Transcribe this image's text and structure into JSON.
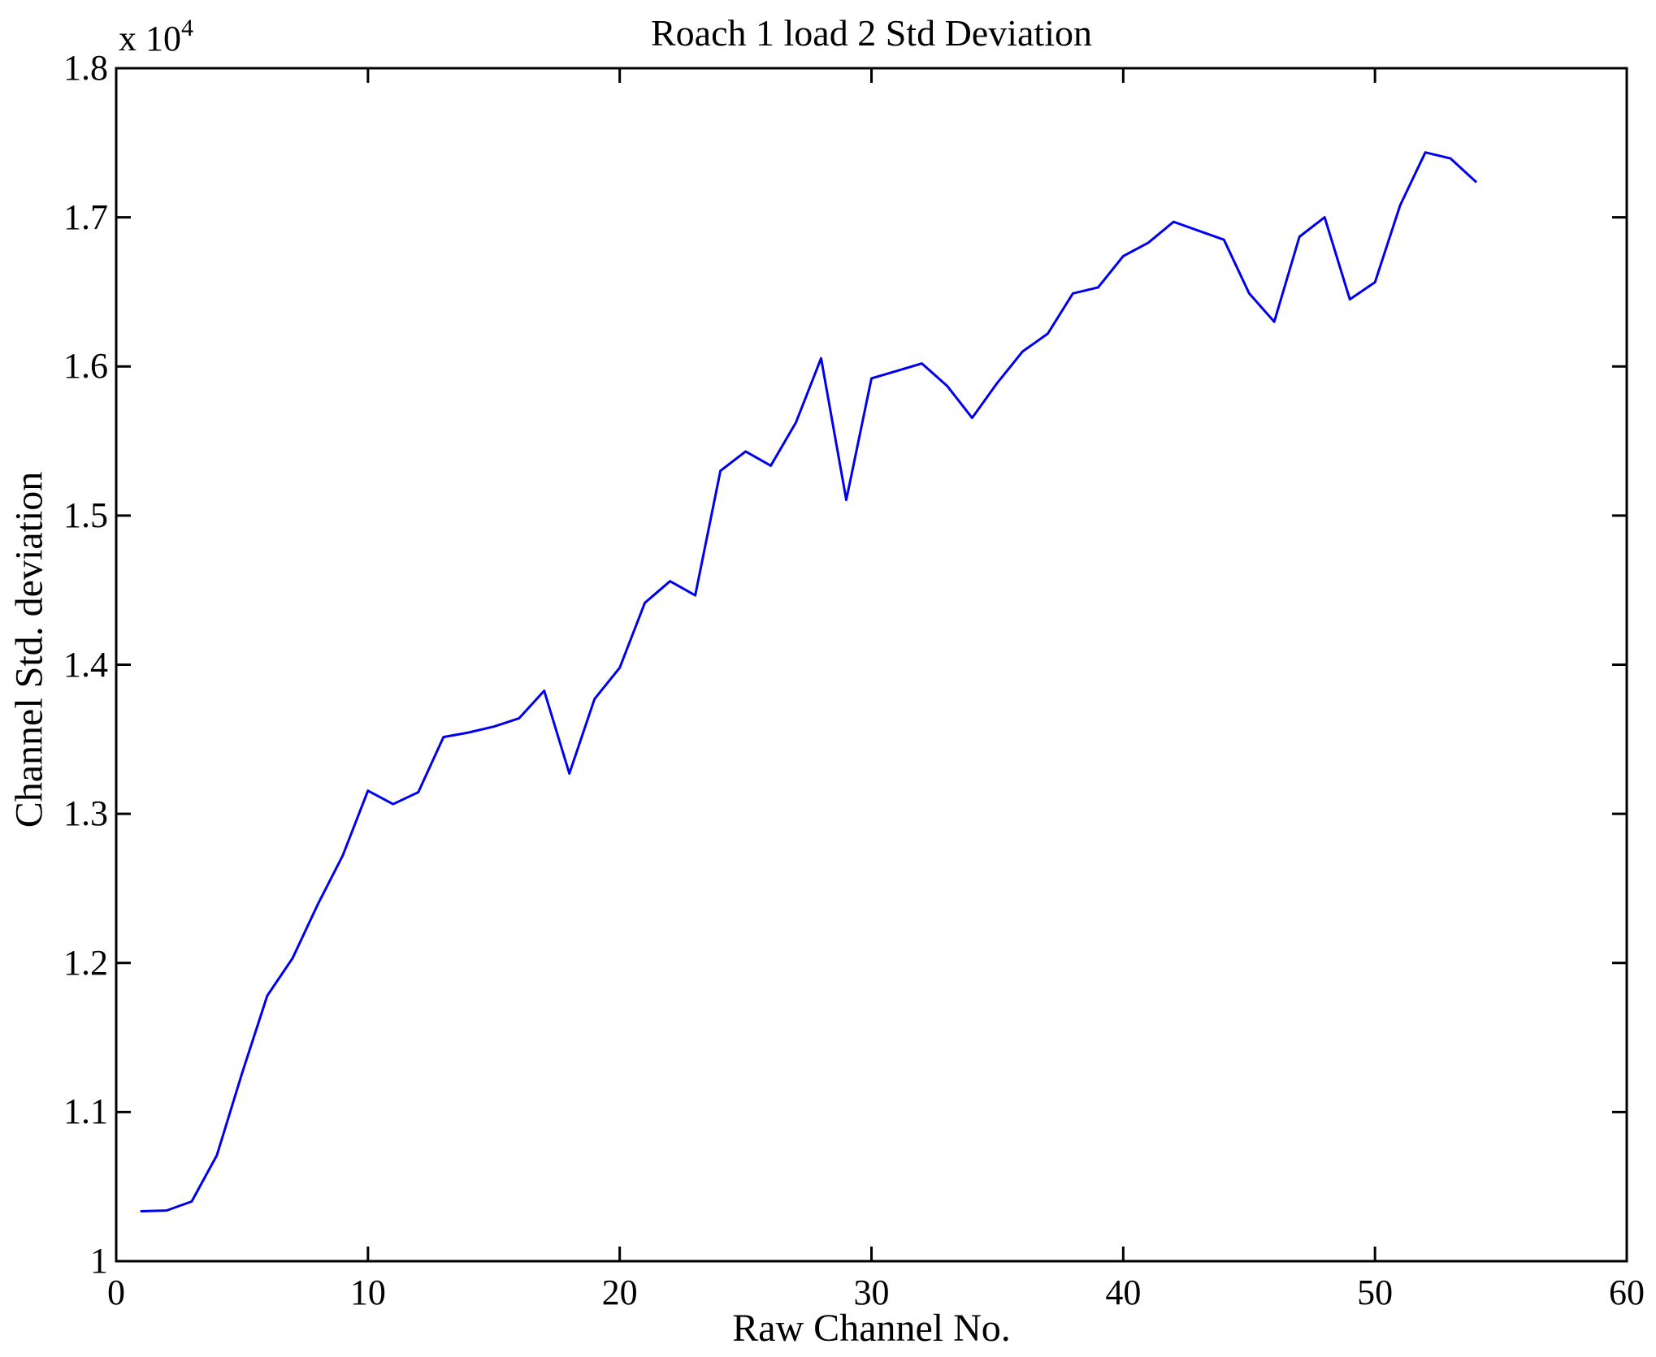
{
  "title": "Roach 1 load 2 Std Deviation",
  "axes": {
    "x": {
      "label": "Raw Channel No.",
      "min": 0,
      "max": 60,
      "tick_values": [
        0,
        10,
        20,
        30,
        40,
        50,
        60
      ],
      "tick_labels": [
        "0",
        "10",
        "20",
        "30",
        "40",
        "50",
        "60"
      ]
    },
    "y": {
      "label": "Channel Std. deviation",
      "min": 1,
      "max": 1.8,
      "multiplier_base": "x 10",
      "multiplier_exp": "4",
      "tick_values": [
        1,
        1.1,
        1.2,
        1.3,
        1.4,
        1.5,
        1.6,
        1.7,
        1.8
      ],
      "tick_labels": [
        "1",
        "1.1",
        "1.2",
        "1.3",
        "1.4",
        "1.5",
        "1.6",
        "1.7",
        "1.8"
      ]
    }
  },
  "chart_data": {
    "type": "line",
    "title": "Roach 1 load 2 Std Deviation",
    "xlabel": "Raw Channel No.",
    "ylabel": "Channel Std. deviation",
    "y_units_note": "values are in units of 10^4 (axis shows x 10^4)",
    "xlim": [
      0,
      60
    ],
    "ylim": [
      1.0,
      1.8
    ],
    "grid": false,
    "legend": null,
    "line_color": "#0000ee",
    "axis_color": "#000000",
    "background_color": "#ffffff",
    "x": [
      1,
      2,
      3,
      4,
      5,
      6,
      7,
      8,
      9,
      10,
      11,
      12,
      13,
      14,
      15,
      16,
      17,
      18,
      19,
      20,
      21,
      22,
      23,
      24,
      25,
      26,
      27,
      28,
      29,
      30,
      31,
      32,
      33,
      34,
      35,
      36,
      37,
      38,
      39,
      40,
      41,
      42,
      43,
      44,
      45,
      46,
      47,
      48,
      49,
      50,
      51,
      52,
      53,
      54
    ],
    "values": [
      1.0335,
      1.034,
      1.04,
      1.071,
      1.126,
      1.178,
      1.203,
      1.239,
      1.272,
      1.3155,
      1.3065,
      1.3145,
      1.3515,
      1.3545,
      1.3585,
      1.364,
      1.3825,
      1.327,
      1.377,
      1.398,
      1.4415,
      1.456,
      1.4465,
      1.53,
      1.543,
      1.5335,
      1.5625,
      1.6055,
      1.5105,
      1.592,
      1.597,
      1.602,
      1.587,
      1.5655,
      1.589,
      1.61,
      1.622,
      1.649,
      1.653,
      1.674,
      1.683,
      1.697,
      1.691,
      1.685,
      1.649,
      1.63,
      1.687,
      1.7,
      1.645,
      1.6565,
      1.708,
      1.7435,
      1.7395,
      1.724
    ]
  }
}
